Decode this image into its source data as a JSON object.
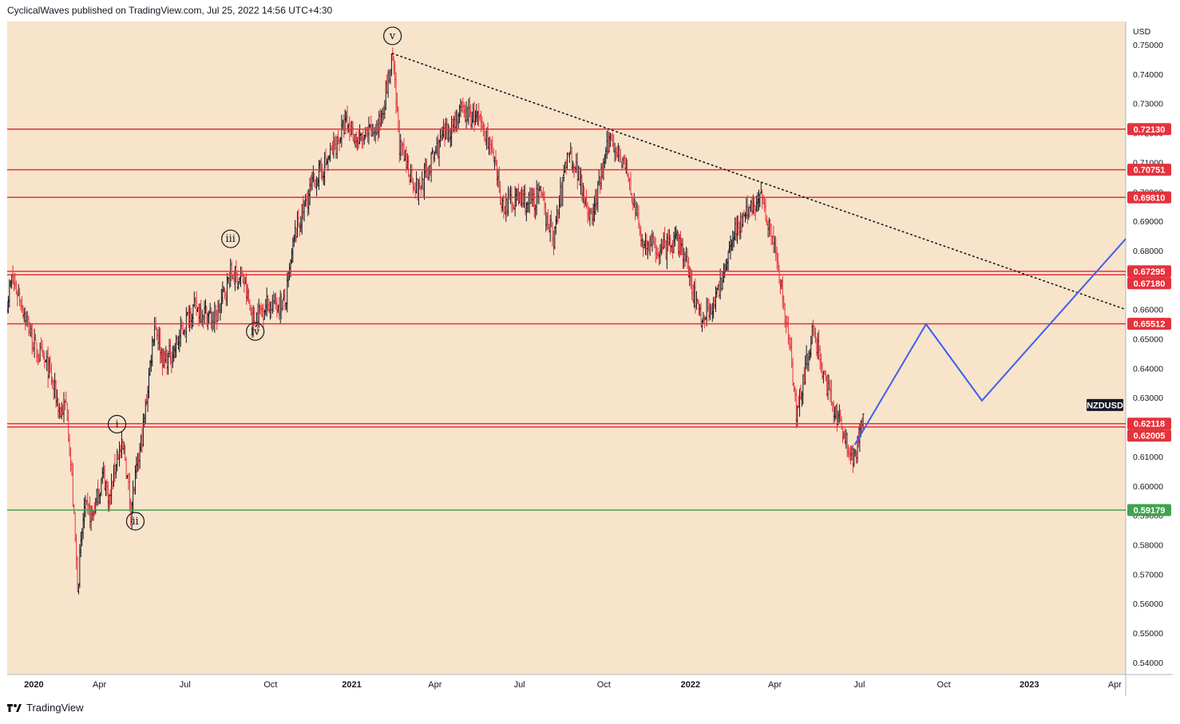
{
  "header": {
    "text": "CyclicalWaves published on TradingView.com, Jul 25, 2022 14:56 UTC+4:30"
  },
  "footer": {
    "brand": "TradingView",
    "logo_icon": "tradingview-logo-icon"
  },
  "colors": {
    "background": "#F8E4CB",
    "resistance_line": "#E5323C",
    "support_line": "#3FA34D",
    "projection_line": "#3B5FF0",
    "trendline": "#131722",
    "candle_up": "#131722",
    "candle_down": "#E5323C"
  },
  "chart_data": {
    "type": "line",
    "symbol": "NZDUSD",
    "currency": "USD",
    "timeframe_note": "daily OHLC bars",
    "x_axis": {
      "labels": [
        "2020",
        "Apr",
        "Jul",
        "Oct",
        "2021",
        "Apr",
        "Jul",
        "Oct",
        "2022",
        "Apr",
        "Jul",
        "Oct",
        "2023",
        "Apr"
      ],
      "range": [
        "2020-01-01",
        "2023-05-15"
      ]
    },
    "y_axis": {
      "ticks": [
        "0.75000",
        "0.74000",
        "0.73000",
        "0.72000",
        "0.71000",
        "0.70000",
        "0.69000",
        "0.68000",
        "0.67000",
        "0.66000",
        "0.65000",
        "0.64000",
        "0.63000",
        "0.62000",
        "0.61000",
        "0.60000",
        "0.59000",
        "0.58000",
        "0.57000",
        "0.56000",
        "0.55000",
        "0.54000"
      ],
      "range": [
        0.5345,
        0.7535
      ]
    },
    "price_path": [
      [
        "2020-01-01",
        0.663
      ],
      [
        "2020-01-06",
        0.67
      ],
      [
        "2020-01-15",
        0.664
      ],
      [
        "2020-01-31",
        0.647
      ],
      [
        "2020-02-15",
        0.64
      ],
      [
        "2020-02-28",
        0.625
      ],
      [
        "2020-03-06",
        0.628
      ],
      [
        "2020-03-12",
        0.6
      ],
      [
        "2020-03-18",
        0.566
      ],
      [
        "2020-03-25",
        0.592
      ],
      [
        "2020-04-03",
        0.59
      ],
      [
        "2020-04-15",
        0.604
      ],
      [
        "2020-04-22",
        0.595
      ],
      [
        "2020-04-30",
        0.611
      ],
      [
        "2020-05-08",
        0.612
      ],
      [
        "2020-05-15",
        0.592
      ],
      [
        "2020-05-29",
        0.62
      ],
      [
        "2020-06-10",
        0.656
      ],
      [
        "2020-06-20",
        0.642
      ],
      [
        "2020-07-01",
        0.646
      ],
      [
        "2020-07-20",
        0.66
      ],
      [
        "2020-07-31",
        0.66
      ],
      [
        "2020-08-15",
        0.656
      ],
      [
        "2020-09-01",
        0.672
      ],
      [
        "2020-09-15",
        0.67
      ],
      [
        "2020-09-25",
        0.656
      ],
      [
        "2020-10-10",
        0.662
      ],
      [
        "2020-10-31",
        0.662
      ],
      [
        "2020-11-10",
        0.685
      ],
      [
        "2020-11-30",
        0.703
      ],
      [
        "2020-12-15",
        0.71
      ],
      [
        "2021-01-05",
        0.723
      ],
      [
        "2021-01-20",
        0.717
      ],
      [
        "2021-02-10",
        0.722
      ],
      [
        "2021-02-25",
        0.745
      ],
      [
        "2021-03-05",
        0.715
      ],
      [
        "2021-03-25",
        0.7
      ],
      [
        "2021-04-15",
        0.715
      ],
      [
        "2021-05-10",
        0.727
      ],
      [
        "2021-05-28",
        0.725
      ],
      [
        "2021-06-10",
        0.718
      ],
      [
        "2021-06-25",
        0.695
      ],
      [
        "2021-07-10",
        0.698
      ],
      [
        "2021-07-25",
        0.696
      ],
      [
        "2021-08-05",
        0.699
      ],
      [
        "2021-08-20",
        0.684
      ],
      [
        "2021-09-05",
        0.715
      ],
      [
        "2021-09-20",
        0.703
      ],
      [
        "2021-09-30",
        0.69
      ],
      [
        "2021-10-21",
        0.719
      ],
      [
        "2021-11-05",
        0.71
      ],
      [
        "2021-11-25",
        0.683
      ],
      [
        "2021-12-15",
        0.68
      ],
      [
        "2022-01-05",
        0.683
      ],
      [
        "2022-01-28",
        0.657
      ],
      [
        "2022-02-15",
        0.664
      ],
      [
        "2022-03-05",
        0.687
      ],
      [
        "2022-03-25",
        0.695
      ],
      [
        "2022-04-05",
        0.698
      ],
      [
        "2022-04-20",
        0.68
      ],
      [
        "2022-05-05",
        0.648
      ],
      [
        "2022-05-12",
        0.625
      ],
      [
        "2022-05-31",
        0.653
      ],
      [
        "2022-06-10",
        0.64
      ],
      [
        "2022-06-20",
        0.627
      ],
      [
        "2022-07-01",
        0.62
      ],
      [
        "2022-07-14",
        0.608
      ],
      [
        "2022-07-25",
        0.625
      ]
    ],
    "horizontal_levels": [
      {
        "value": 0.7213,
        "label": "0.72130",
        "color": "#E5323C"
      },
      {
        "value": 0.70751,
        "label": "0.70751",
        "color": "#E5323C"
      },
      {
        "value": 0.6981,
        "label": "0.69810",
        "color": "#E5323C"
      },
      {
        "value": 0.67295,
        "label": "0.67295",
        "color": "#E5323C"
      },
      {
        "value": 0.6718,
        "label": "0.67180",
        "color": "#E5323C"
      },
      {
        "value": 0.65512,
        "label": "0.65512",
        "color": "#E5323C"
      },
      {
        "value": 0.62118,
        "label": "0.62118",
        "color": "#E5323C"
      },
      {
        "value": 0.62005,
        "label": "0.62005",
        "color": "#E5323C"
      },
      {
        "value": 0.59179,
        "label": "0.59179",
        "color": "#3FA34D"
      }
    ],
    "trendline": {
      "style": "dotted",
      "points": [
        [
          "2021-02-25",
          0.747
        ],
        [
          "2023-05-12",
          0.66
        ]
      ]
    },
    "projection": {
      "color": "#3B5FF0",
      "points": [
        [
          "2022-07-15",
          0.614
        ],
        [
          "2022-10-01",
          0.655
        ],
        [
          "2022-12-01",
          0.629
        ],
        [
          "2023-05-15",
          0.684
        ]
      ]
    },
    "wave_labels": [
      {
        "text": "i",
        "date": "2020-04-30",
        "price": 0.621
      },
      {
        "text": "ii",
        "date": "2020-05-20",
        "price": 0.588
      },
      {
        "text": "iii",
        "date": "2020-09-01",
        "price": 0.684
      },
      {
        "text": "iv",
        "date": "2020-09-28",
        "price": 0.6525
      },
      {
        "text": "v",
        "date": "2021-02-25",
        "price": 0.753
      }
    ],
    "last_price_tag": {
      "text": "NZDUSD",
      "value": 0.6275
    }
  }
}
